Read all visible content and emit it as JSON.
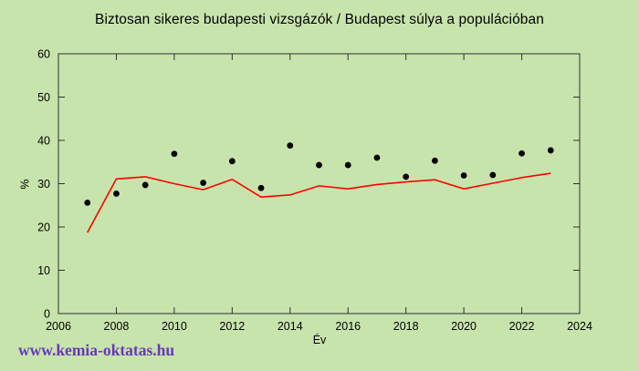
{
  "watermark": "www.kemia-oktatas.hu",
  "colors": {
    "background": "#c8e4ad",
    "axis": "#2f2f2f",
    "tick_label": "#000000",
    "scatter": "#000000",
    "line": "#ff0000",
    "watermark": "#6639b8"
  },
  "chart_data": {
    "type": "scatter",
    "title": "Biztosan sikeres budapesti vizsgázók / Budapest súlya a populációban",
    "xlabel": "Év",
    "ylabel": "%",
    "xlim": [
      2006,
      2024
    ],
    "ylim": [
      0,
      60
    ],
    "xticks": [
      2006,
      2008,
      2010,
      2012,
      2014,
      2016,
      2018,
      2020,
      2022,
      2024
    ],
    "yticks": [
      0,
      10,
      20,
      30,
      40,
      50,
      60
    ],
    "grid": false,
    "legend": "none",
    "x": [
      2007,
      2008,
      2009,
      2010,
      2011,
      2012,
      2013,
      2014,
      2015,
      2016,
      2017,
      2018,
      2019,
      2020,
      2021,
      2022,
      2023
    ],
    "series": [
      {
        "name": "Biztosan sikeres budapesti vizsgázók",
        "type": "scatter",
        "color": "#000000",
        "values": [
          25.6,
          27.7,
          29.7,
          36.9,
          30.2,
          35.2,
          29.0,
          38.8,
          34.3,
          34.3,
          36.0,
          31.6,
          35.3,
          31.9,
          32.0,
          37.0,
          37.7
        ]
      },
      {
        "name": "Budapest súlya a populációban",
        "type": "line",
        "color": "#ff0000",
        "values": [
          18.7,
          31.1,
          31.6,
          30.0,
          28.6,
          31.0,
          26.9,
          27.4,
          29.5,
          28.8,
          29.8,
          30.4,
          30.9,
          28.8,
          30.1,
          31.4,
          32.4
        ]
      }
    ]
  }
}
